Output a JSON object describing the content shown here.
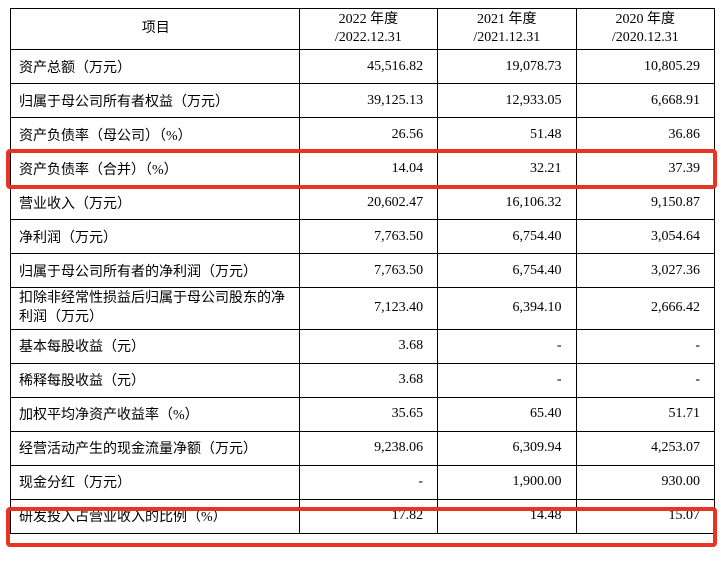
{
  "table": {
    "header": {
      "item": "项目",
      "y2022": "2022 年度\n/2022.12.31",
      "y2021": "2021 年度\n/2021.12.31",
      "y2020": "2020 年度\n/2020.12.31"
    },
    "rows": [
      {
        "item": "资产总额（万元）",
        "y2022": "45,516.82",
        "y2021": "19,078.73",
        "y2020": "10,805.29",
        "tall": false
      },
      {
        "item": "归属于母公司所有者权益（万元）",
        "y2022": "39,125.13",
        "y2021": "12,933.05",
        "y2020": "6,668.91",
        "tall": false
      },
      {
        "item": "资产负债率（母公司）（%）",
        "y2022": "26.56",
        "y2021": "51.48",
        "y2020": "36.86",
        "tall": false
      },
      {
        "item": "资产负债率（合并）（%）",
        "y2022": "14.04",
        "y2021": "32.21",
        "y2020": "37.39",
        "tall": false
      },
      {
        "item": "营业收入（万元）",
        "y2022": "20,602.47",
        "y2021": "16,106.32",
        "y2020": "9,150.87",
        "tall": false
      },
      {
        "item": "净利润（万元）",
        "y2022": "7,763.50",
        "y2021": "6,754.40",
        "y2020": "3,054.64",
        "tall": false
      },
      {
        "item": "归属于母公司所有者的净利润（万元）",
        "y2022": "7,763.50",
        "y2021": "6,754.40",
        "y2020": "3,027.36",
        "tall": false
      },
      {
        "item": "扣除非经常性损益后归属于母公司股东的净利润（万元）",
        "y2022": "7,123.40",
        "y2021": "6,394.10",
        "y2020": "2,666.42",
        "tall": true
      },
      {
        "item": "基本每股收益（元）",
        "y2022": "3.68",
        "y2021": "-",
        "y2020": "-",
        "tall": false
      },
      {
        "item": "稀释每股收益（元）",
        "y2022": "3.68",
        "y2021": "-",
        "y2020": "-",
        "tall": false
      },
      {
        "item": "加权平均净资产收益率（%）",
        "y2022": "35.65",
        "y2021": "65.40",
        "y2020": "51.71",
        "tall": false
      },
      {
        "item": "经营活动产生的现金流量净额（万元）",
        "y2022": "9,238.06",
        "y2021": "6,309.94",
        "y2020": "4,253.07",
        "tall": false
      },
      {
        "item": "现金分红（万元）",
        "y2022": "-",
        "y2021": "1,900.00",
        "y2020": "930.00",
        "tall": false
      },
      {
        "item": "研发投入占营业收入的比例（%）",
        "y2022": "17.82",
        "y2021": "14.48",
        "y2020": "15.07",
        "tall": false
      }
    ]
  },
  "highlight_color": "#e93323"
}
